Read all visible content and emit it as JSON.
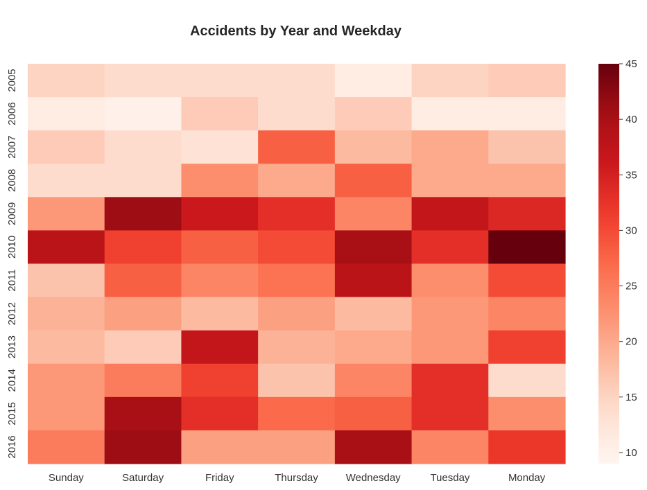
{
  "chart_data": {
    "type": "heatmap",
    "title": "Accidents by Year and Weekday",
    "xlabel": "",
    "ylabel": "",
    "x_categories": [
      "Sunday",
      "Saturday",
      "Friday",
      "Thursday",
      "Wednesday",
      "Tuesday",
      "Monday"
    ],
    "y_categories": [
      "2005",
      "2006",
      "2007",
      "2008",
      "2009",
      "2010",
      "2011",
      "2012",
      "2013",
      "2014",
      "2015",
      "2016"
    ],
    "values": [
      [
        15,
        14,
        14,
        14,
        11,
        15,
        16
      ],
      [
        11,
        10,
        16,
        14,
        16,
        11,
        11
      ],
      [
        16,
        14,
        13,
        28,
        18,
        20,
        17
      ],
      [
        14,
        14,
        23,
        20,
        28,
        20,
        20
      ],
      [
        22,
        41,
        36,
        33,
        24,
        37,
        34
      ],
      [
        38,
        31,
        28,
        30,
        40,
        33,
        45
      ],
      [
        17,
        28,
        24,
        26,
        38,
        23,
        30
      ],
      [
        19,
        21,
        18,
        21,
        18,
        22,
        24
      ],
      [
        18,
        16,
        37,
        19,
        20,
        22,
        31
      ],
      [
        22,
        25,
        31,
        17,
        24,
        33,
        14
      ],
      [
        22,
        40,
        33,
        27,
        28,
        33,
        23
      ],
      [
        25,
        41,
        21,
        21,
        40,
        24,
        32
      ]
    ],
    "colormap": "Reds",
    "colorbar": {
      "vmin": 9,
      "vmax": 45,
      "ticks": [
        10,
        15,
        20,
        25,
        30,
        35,
        40,
        45
      ]
    },
    "grid": false,
    "legend": "colorbar-right"
  }
}
